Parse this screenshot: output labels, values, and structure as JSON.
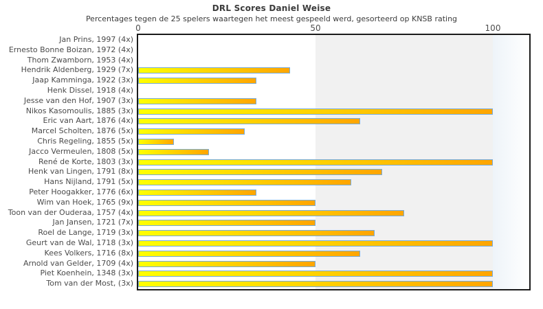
{
  "chart": {
    "title": "DRL Scores Daniel Weise",
    "subtitle": "Percentages tegen de 25 spelers waartegen het meest gespeeld werd, gesorteerd op KNSB rating"
  },
  "chart_data": {
    "type": "bar",
    "orientation": "horizontal",
    "title": "DRL Scores Daniel Weise",
    "subtitle": "Percentages tegen de 25 spelers waartegen het meest gespeeld werd, gesorteerd op KNSB rating",
    "xlabel": "",
    "ylabel": "",
    "xlim": [
      0,
      110
    ],
    "x_ticks": [
      0,
      50,
      100
    ],
    "grid": false,
    "legend_position": "none",
    "categories": [
      "Jan Prins, 1997 (4x)",
      "Ernesto Bonne Boizan, 1972 (4x)",
      "Thom Zwamborn, 1953 (4x)",
      "Hendrik Aldenberg, 1929 (7x)",
      "Jaap Kamminga, 1922 (3x)",
      "Henk Dissel, 1918 (4x)",
      "Jesse van den Hof, 1907 (3x)",
      "Nikos Kasomoulis, 1885 (3x)",
      "Eric van Aart, 1876 (4x)",
      "Marcel Scholten, 1876 (5x)",
      "Chris Regeling, 1855 (5x)",
      "Jacco Vermeulen, 1808 (5x)",
      "René de Korte, 1803 (3x)",
      "Henk van Lingen, 1791 (8x)",
      "Hans Nijland, 1791 (5x)",
      "Peter Hoogakker, 1776 (6x)",
      "Wim van Hoek, 1765 (9x)",
      "Toon van der Ouderaa, 1757 (4x)",
      "Jan Jansen, 1721 (7x)",
      "Roel de Lange, 1719 (3x)",
      "Geurt van de Wal, 1718 (3x)",
      "Kees Volkers, 1716 (8x)",
      "Arnold van Gelder, 1709 (4x)",
      "Piet Koenhein, 1348 (3x)",
      "Tom van der Most,  (3x)"
    ],
    "values": [
      0,
      0,
      0,
      42.9,
      33.3,
      0,
      33.3,
      100,
      62.5,
      30,
      10,
      20,
      100,
      68.8,
      60,
      33.3,
      50,
      75,
      50,
      66.7,
      100,
      62.5,
      50,
      100,
      100
    ],
    "colors": {
      "bar_gradient_start": "#ffff00",
      "bar_gradient_end": "#ffa500",
      "bar_border": "#74aadc",
      "band_shade": "#f1f1f1",
      "right_fade_start": "#eef4f9",
      "plot_border": "#1a1a1a",
      "title_text": "#3c3c3c",
      "label_text": "#4a4a4a"
    }
  }
}
